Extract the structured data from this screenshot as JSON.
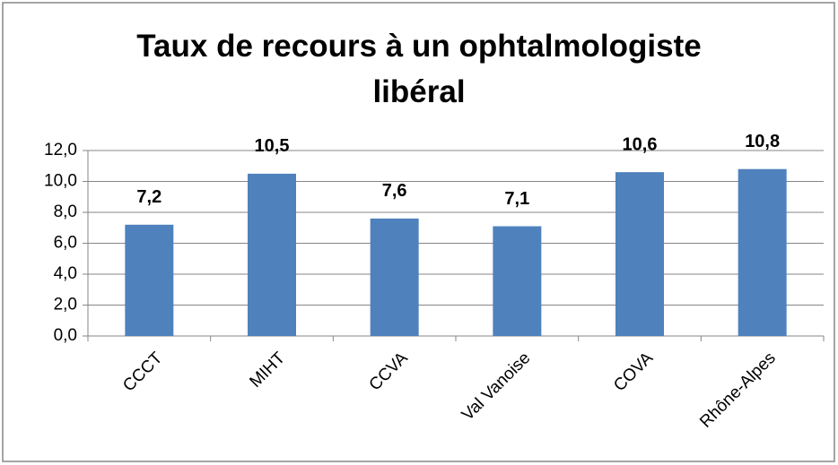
{
  "chart_data": {
    "type": "bar",
    "title": "Taux de recours à un ophtalmologiste libéral",
    "categories": [
      "CCCT",
      "MIHT",
      "CCVA",
      "Val Vanoise",
      "COVA",
      "Rhône-Alpes"
    ],
    "values": [
      7.2,
      10.5,
      7.6,
      7.1,
      10.6,
      10.8
    ],
    "value_labels": [
      "7,2",
      "10,5",
      "7,6",
      "7,1",
      "10,6",
      "10,8"
    ],
    "color": "#4f81bd",
    "ylim": [
      0,
      12
    ],
    "yticks": [
      {
        "value": 0,
        "label": "0,0"
      },
      {
        "value": 2,
        "label": "2,0"
      },
      {
        "value": 4,
        "label": "4,0"
      },
      {
        "value": 6,
        "label": "6,0"
      },
      {
        "value": 8,
        "label": "8,0"
      },
      {
        "value": 10,
        "label": "10,0"
      },
      {
        "value": 12,
        "label": "12,0"
      }
    ],
    "grid": true
  }
}
